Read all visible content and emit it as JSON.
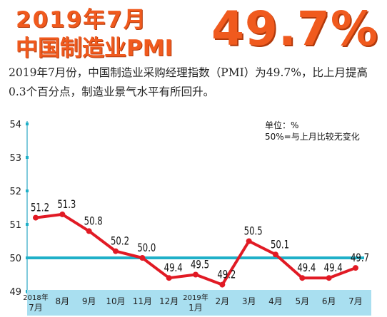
{
  "header": {
    "line1": "2019年7月",
    "line2": "中国制造业PMI",
    "big_value": "49.7%"
  },
  "description": "2019年7月份，中国制造业采购经理指数（PMI）为49.7%，比上月提高0.3个百分点，制造业景气水平有所回升。",
  "legend": {
    "unit": "单位：%",
    "note": "50%=与上月比较无变化"
  },
  "colors": {
    "accent": "#f05a1e",
    "line": "#e11a24",
    "baseline": "#1fb0c8",
    "axis_band": "#a9dff0"
  },
  "chart_data": {
    "type": "line",
    "categories": [
      "2018年\n7月",
      "8月",
      "9月",
      "10月",
      "11月",
      "12月",
      "2019年\n1月",
      "2月",
      "3月",
      "4月",
      "5月",
      "6月",
      "7月"
    ],
    "values": [
      51.2,
      51.3,
      50.8,
      50.2,
      50.0,
      49.4,
      49.5,
      49.2,
      50.5,
      50.1,
      49.4,
      49.4,
      49.7
    ],
    "data_labels": [
      "51.2",
      "51.3",
      "50.8",
      "50.2",
      "50.0",
      "49.4",
      "49.5",
      "49.2",
      "50.5",
      "50.1",
      "49.4",
      "49.4",
      "49.7"
    ],
    "y_ticks": [
      "49",
      "50",
      "51",
      "52",
      "53",
      "54"
    ],
    "ylim": [
      49,
      54
    ],
    "reference_line": 50,
    "title": "",
    "xlabel": "",
    "ylabel": ""
  }
}
